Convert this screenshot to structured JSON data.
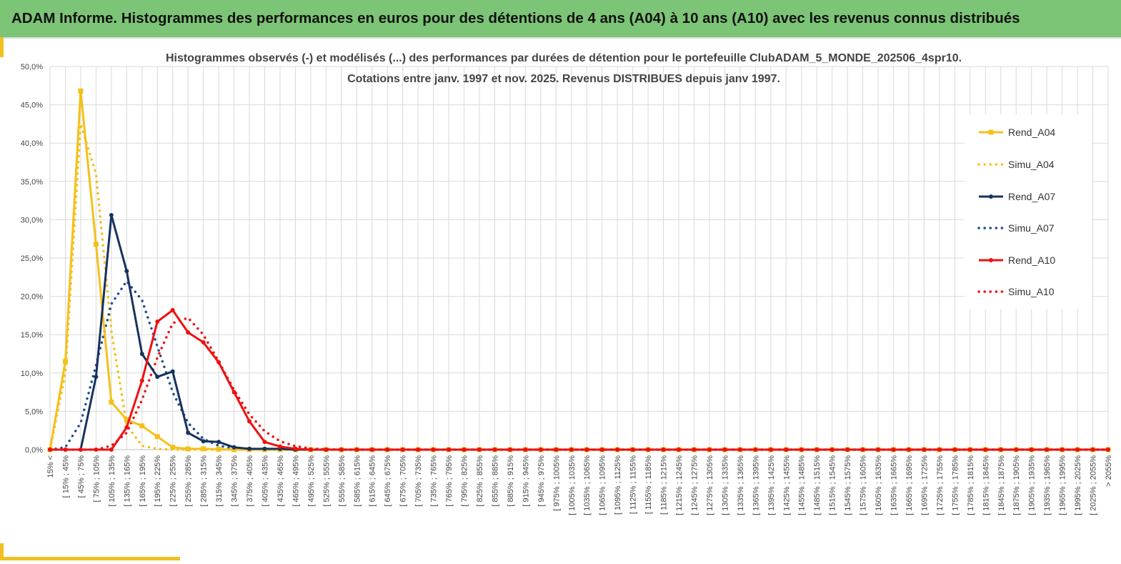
{
  "banner": {
    "title": "ADAM Informe. Histogrammes des performances en euros pour des détentions de 4 ans (A04) à 10 ans (A10) avec les revenus connus distribués"
  },
  "colors": {
    "banner_bg": "#7cc576",
    "accent_yellow": "#f2c01e",
    "a04": "#f5c01a",
    "a07": "#17325f",
    "a10": "#ee1111"
  },
  "chart_data": {
    "type": "line",
    "title_lines": [
      "Histogrammes observés (-) et modélisés (...) des performances par durées de détention pour le portefeuille ClubADAM_5_MONDE_202506_4spr10.",
      "Cotations entre janv. 1997 et nov. 2025. Revenus DISTRIBUES depuis janv 1997."
    ],
    "ylim": [
      0,
      50
    ],
    "yticks": [
      "0,0%",
      "5,0%",
      "10,0%",
      "15,0%",
      "20,0%",
      "25,0%",
      "30,0%",
      "35,0%",
      "40,0%",
      "45,0%",
      "50,0%"
    ],
    "grid": true,
    "legend_position": "right",
    "categories": [
      "15% <",
      "[ 15% ; 45%",
      "[ 45% ; 75%",
      "[ 75% ; 105%",
      "[ 105% ; 135%",
      "[ 135% ; 165%",
      "[ 165% ; 195%",
      "[ 195% ; 225%",
      "[ 225% ; 255%",
      "[ 255% ; 285%",
      "[ 285% ; 315%",
      "[ 315% ; 345%",
      "[ 345% ; 375%",
      "[ 375% ; 405%",
      "[ 405% ; 435%",
      "[ 435% ; 465%",
      "[ 465% ; 495%",
      "[ 495% ; 525%",
      "[ 525% ; 555%",
      "[ 555% ; 585%",
      "[ 585% ; 615%",
      "[ 615% ; 645%",
      "[ 645% ; 675%",
      "[ 675% ; 705%",
      "[ 705% ; 735%",
      "[ 735% ; 765%",
      "[ 765% ; 795%",
      "[ 795% ; 825%",
      "[ 825% ; 855%",
      "[ 855% ; 885%",
      "[ 885% ; 915%",
      "[ 915% ; 945%",
      "[ 945% ; 975%",
      "[ 975% ; 1005%",
      "[ 1005% ; 1035%",
      "[ 1035% ; 1065%",
      "[ 1065% ; 1095%",
      "[ 1095% ; 1125%",
      "[ 1125% ; 1155%",
      "[ 1155% ; 1185%",
      "[ 1185% ; 1215%",
      "[ 1215% ; 1245%",
      "[ 1245% ; 1275%",
      "[ 1275% ; 1305%",
      "[ 1305% ; 1335%",
      "[ 1335% ; 1365%",
      "[ 1365% ; 1395%",
      "[ 1395% ; 1425%",
      "[ 1425% ; 1455%",
      "[ 1455% ; 1485%",
      "[ 1485% ; 1515%",
      "[ 1515% ; 1545%",
      "[ 1545% ; 1575%",
      "[ 1575% ; 1605%",
      "[ 1605% ; 1635%",
      "[ 1635% ; 1665%",
      "[ 1665% ; 1695%",
      "[ 1695% ; 1725%",
      "[ 1725% ; 1755%",
      "[ 1755% ; 1785%",
      "[ 1785% ; 1815%",
      "[ 1815% ; 1845%",
      "[ 1845% ; 1875%",
      "[ 1875% ; 1905%",
      "[ 1905% ; 1935%",
      "[ 1935% ; 1965%",
      "[ 1965% ; 1995%",
      "[ 1995% ; 2025%",
      "[ 2025% ; 2055%",
      "> 2055%"
    ],
    "series": [
      {
        "name": "Rend_A04",
        "style": "solid",
        "marker": "square",
        "color": "#f5c01a",
        "values": [
          0,
          11.5,
          46.8,
          26.8,
          6.2,
          3.9,
          3.1,
          1.7,
          0.3,
          0.1,
          0.1,
          0.05,
          0,
          0,
          0,
          0,
          0,
          0,
          0,
          0,
          0,
          0,
          0,
          0,
          0,
          0,
          0,
          0,
          0,
          0,
          0,
          0,
          0,
          0,
          0,
          0,
          0,
          0,
          0,
          0,
          0,
          0,
          0,
          0,
          0,
          0,
          0,
          0,
          0,
          0,
          0,
          0,
          0,
          0,
          0,
          0,
          0,
          0,
          0,
          0,
          0,
          0,
          0,
          0,
          0,
          0,
          0,
          0,
          0,
          0
        ]
      },
      {
        "name": "Simu_A04",
        "style": "dotted",
        "marker": "none",
        "color": "#f5c01a",
        "values": [
          0,
          10.0,
          42.5,
          36.0,
          15.5,
          3.2,
          0.5,
          0.1,
          0,
          0,
          0,
          0,
          0,
          0,
          0,
          0,
          0,
          0,
          0,
          0,
          0,
          0,
          0,
          0,
          0,
          0,
          0,
          0,
          0,
          0,
          0,
          0,
          0,
          0,
          0,
          0,
          0,
          0,
          0,
          0,
          0,
          0,
          0,
          0,
          0,
          0,
          0,
          0,
          0,
          0,
          0,
          0,
          0,
          0,
          0,
          0,
          0,
          0,
          0,
          0,
          0,
          0,
          0,
          0,
          0,
          0,
          0,
          0,
          0,
          0
        ]
      },
      {
        "name": "Rend_A07",
        "style": "solid",
        "marker": "circle",
        "color": "#17325f",
        "values": [
          0,
          0,
          0,
          9.5,
          30.6,
          23.3,
          12.5,
          9.5,
          10.2,
          2.2,
          1.1,
          1.0,
          0.3,
          0.1,
          0.1,
          0.1,
          0,
          0,
          0,
          0,
          0,
          0,
          0,
          0,
          0,
          0,
          0,
          0,
          0,
          0,
          0,
          0,
          0,
          0,
          0,
          0,
          0,
          0,
          0,
          0,
          0,
          0,
          0,
          0,
          0,
          0,
          0,
          0,
          0,
          0,
          0,
          0,
          0,
          0,
          0,
          0,
          0,
          0,
          0,
          0,
          0,
          0,
          0,
          0,
          0,
          0,
          0,
          0,
          0,
          0
        ]
      },
      {
        "name": "Simu_A07",
        "style": "dotted",
        "marker": "none",
        "color": "#1f4e8c",
        "values": [
          0,
          0.3,
          3.5,
          11.0,
          19.0,
          22.0,
          19.5,
          13.5,
          7.5,
          3.5,
          1.4,
          0.5,
          0.15,
          0.05,
          0,
          0,
          0,
          0,
          0,
          0,
          0,
          0,
          0,
          0,
          0,
          0,
          0,
          0,
          0,
          0,
          0,
          0,
          0,
          0,
          0,
          0,
          0,
          0,
          0,
          0,
          0,
          0,
          0,
          0,
          0,
          0,
          0,
          0,
          0,
          0,
          0,
          0,
          0,
          0,
          0,
          0,
          0,
          0,
          0,
          0,
          0,
          0,
          0,
          0,
          0,
          0,
          0,
          0,
          0,
          0
        ]
      },
      {
        "name": "Rend_A10",
        "style": "solid",
        "marker": "circle",
        "color": "#ee1111",
        "values": [
          0,
          0,
          0,
          0,
          0,
          2.9,
          9.0,
          16.7,
          18.2,
          15.3,
          14.0,
          11.4,
          7.5,
          3.7,
          1.0,
          0.4,
          0.1,
          0,
          0,
          0,
          0,
          0,
          0,
          0,
          0,
          0,
          0,
          0,
          0,
          0,
          0,
          0,
          0,
          0,
          0,
          0,
          0,
          0,
          0,
          0,
          0,
          0,
          0,
          0,
          0,
          0,
          0,
          0,
          0,
          0,
          0,
          0,
          0,
          0,
          0,
          0,
          0,
          0,
          0,
          0,
          0,
          0,
          0,
          0,
          0,
          0,
          0,
          0,
          0,
          0
        ]
      },
      {
        "name": "Simu_A10",
        "style": "dotted",
        "marker": "none",
        "color": "#ee1111",
        "values": [
          0,
          0,
          0,
          0,
          0.5,
          2.2,
          6.5,
          12.0,
          16.5,
          17.2,
          15.0,
          11.5,
          7.8,
          4.6,
          2.4,
          1.1,
          0.45,
          0.15,
          0.05,
          0,
          0,
          0,
          0,
          0,
          0,
          0,
          0,
          0,
          0,
          0,
          0,
          0,
          0,
          0,
          0,
          0,
          0,
          0,
          0,
          0,
          0,
          0,
          0,
          0,
          0,
          0,
          0,
          0,
          0,
          0,
          0,
          0,
          0,
          0,
          0,
          0,
          0,
          0,
          0,
          0,
          0,
          0,
          0,
          0,
          0,
          0,
          0,
          0,
          0,
          0
        ]
      }
    ]
  }
}
